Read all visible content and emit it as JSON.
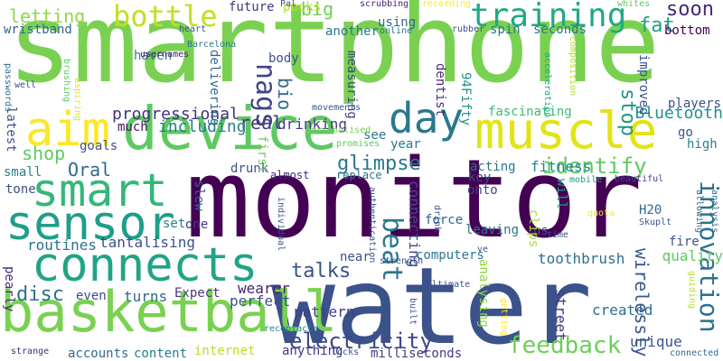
{
  "words": [
    {
      "text": "smartphone",
      "color": "#7ad151"
    },
    {
      "text": "monitor",
      "color": "#440154"
    },
    {
      "text": "water",
      "color": "#3b528b"
    },
    {
      "text": "device",
      "color": "#5ec962"
    },
    {
      "text": "basketball",
      "color": "#7ad151"
    },
    {
      "text": "muscle",
      "color": "#e2e418"
    },
    {
      "text": "connects",
      "color": "#20a486"
    },
    {
      "text": "aim",
      "color": "#fde725"
    },
    {
      "text": "sensor",
      "color": "#1f9e89"
    },
    {
      "text": "smart",
      "color": "#35b779"
    },
    {
      "text": "day",
      "color": "#2a788e"
    },
    {
      "text": "training",
      "color": "#22a884"
    },
    {
      "text": "bottle",
      "color": "#c2df23"
    },
    {
      "text": "nags",
      "color": "#414487"
    },
    {
      "text": "beat",
      "color": "#2a788e"
    },
    {
      "text": "feedback",
      "color": "#6ece58"
    },
    {
      "text": "innovation",
      "color": "#2c728e"
    },
    {
      "text": "electricity",
      "color": "#3e4989"
    },
    {
      "text": "identify",
      "color": "#5ec962"
    },
    {
      "text": "glimpse",
      "color": "#2a788e"
    },
    {
      "text": "soon",
      "color": "#482878"
    },
    {
      "text": "fat",
      "color": "#1fa187"
    },
    {
      "text": "stop",
      "color": "#1f968b"
    },
    {
      "text": "talks",
      "color": "#3b528b"
    },
    {
      "text": "disc",
      "color": "#2c728e"
    },
    {
      "text": "letting",
      "color": "#8fd744"
    },
    {
      "text": "real",
      "color": "#443983"
    },
    {
      "text": "shop",
      "color": "#5ec962"
    },
    {
      "text": "Oral",
      "color": "#31688e"
    },
    {
      "text": "big",
      "color": "#6ece58"
    },
    {
      "text": "bio",
      "color": "#31688e"
    },
    {
      "text": "progressional",
      "color": "#46327e"
    },
    {
      "text": "including",
      "color": "#287c8e"
    },
    {
      "text": "drinking",
      "color": "#443983"
    },
    {
      "text": "wirelessly",
      "color": "#38588c"
    },
    {
      "text": "Bluetooth",
      "color": "#21918c"
    },
    {
      "text": "connecting",
      "color": "#3f4788"
    },
    {
      "text": "fitness",
      "color": "#26828e"
    },
    {
      "text": "unique",
      "color": "#39568c"
    },
    {
      "text": "routines",
      "color": "#2d708e"
    },
    {
      "text": "tantalising",
      "color": "#3b528b"
    },
    {
      "text": "force",
      "color": "#33638d"
    },
    {
      "text": "pattern",
      "color": "#433e85"
    },
    {
      "text": "wearer",
      "color": "#482071"
    },
    {
      "text": "perfect",
      "color": "#3b528b"
    },
    {
      "text": "turns",
      "color": "#31688e"
    },
    {
      "text": "toothbrush",
      "color": "#2d708e"
    },
    {
      "text": "quality",
      "color": "#5ec962"
    },
    {
      "text": "street",
      "color": "#443a83"
    },
    {
      "text": "created",
      "color": "#2e6e8e"
    },
    {
      "text": "milliseconds",
      "color": "#424086"
    },
    {
      "text": "anything",
      "color": "#453781"
    },
    {
      "text": "accounts",
      "color": "#31688e"
    },
    {
      "text": "content",
      "color": "#287c8e"
    },
    {
      "text": "internet",
      "color": "#b5de2b"
    },
    {
      "text": "pearly",
      "color": "#472d7b"
    },
    {
      "text": "Expect",
      "color": "#453781"
    },
    {
      "text": "even",
      "color": "#3e4989"
    },
    {
      "text": "wristband",
      "color": "#31688e"
    },
    {
      "text": "haven",
      "color": "#26828e"
    },
    {
      "text": "future",
      "color": "#443983"
    },
    {
      "text": "packs",
      "color": "#b5de2b"
    },
    {
      "text": "using",
      "color": "#31688e"
    },
    {
      "text": "another",
      "color": "#2a788e"
    },
    {
      "text": "seconds",
      "color": "#2a788e"
    },
    {
      "text": "spin",
      "color": "#2a788e"
    },
    {
      "text": "bottom",
      "color": "#440154"
    },
    {
      "text": "players",
      "color": "#3b528b"
    },
    {
      "text": "improved",
      "color": "#3b528b"
    },
    {
      "text": "dentist",
      "color": "#472c7a"
    },
    {
      "text": "94Fifty",
      "color": "#21918c"
    },
    {
      "text": "fascinating",
      "color": "#3cbb75"
    },
    {
      "text": "measuring",
      "color": "#414487"
    },
    {
      "text": "delivering",
      "color": "#31688e"
    },
    {
      "text": "body",
      "color": "#3b528b"
    },
    {
      "text": "much",
      "color": "#471365"
    },
    {
      "text": "goals",
      "color": "#3b528b"
    },
    {
      "text": "latest",
      "color": "#3b528b"
    },
    {
      "text": "small",
      "color": "#26828e"
    },
    {
      "text": "tone",
      "color": "#3b528b"
    },
    {
      "text": "slew",
      "color": "#31688e"
    },
    {
      "text": "set",
      "color": "#287c8e"
    },
    {
      "text": "one",
      "color": "#443983"
    },
    {
      "text": "H20",
      "color": "#31688e"
    },
    {
      "text": "key",
      "color": "#414487"
    },
    {
      "text": "onto",
      "color": "#414487"
    },
    {
      "text": "acting",
      "color": "#2a788e"
    },
    {
      "text": "leaving",
      "color": "#2c728e"
    },
    {
      "text": "us",
      "color": "#3b528b"
    },
    {
      "text": "clips",
      "color": "#a5db36"
    },
    {
      "text": "fire",
      "color": "#3b528b"
    },
    {
      "text": "computers",
      "color": "#2a788e"
    },
    {
      "text": "analysing",
      "color": "#8fd744"
    },
    {
      "text": "near",
      "color": "#3b528b"
    },
    {
      "text": "year",
      "color": "#2a788e"
    },
    {
      "text": "see",
      "color": "#2a788e"
    },
    {
      "text": "go",
      "color": "#3b528b"
    },
    {
      "text": "high",
      "color": "#26828e"
    },
    {
      "text": "will",
      "color": "#1fa187"
    },
    {
      "text": "drunk",
      "color": "#3b528b"
    },
    {
      "text": "first",
      "color": "#6ece58"
    },
    {
      "text": "almost",
      "color": "#482878"
    },
    {
      "text": "replace",
      "color": "#2c728e"
    },
    {
      "text": "beautiful",
      "color": "#404688"
    },
    {
      "text": "movements",
      "color": "#38588c"
    },
    {
      "text": "promises",
      "color": "#5ec962"
    },
    {
      "text": "personalised",
      "color": "#73d056"
    },
    {
      "text": "usernames",
      "color": "#481b6d"
    },
    {
      "text": "heart",
      "color": "#3b528b"
    },
    {
      "text": "Barcelona",
      "color": "#2a788e"
    },
    {
      "text": "Pal",
      "color": "#3b528b"
    },
    {
      "text": "scrubbing",
      "color": "#481f70"
    },
    {
      "text": "recording",
      "color": "#fde725"
    },
    {
      "text": "whites",
      "color": "#5ec962"
    },
    {
      "text": "online",
      "color": "#2a788e"
    },
    {
      "text": "rubber",
      "color": "#3b528b"
    },
    {
      "text": "acceleration",
      "color": "#20a486"
    },
    {
      "text": "composition",
      "color": "#b5de2b"
    },
    {
      "text": "passwords",
      "color": "#2c728e"
    },
    {
      "text": "well",
      "color": "#3b528b"
    },
    {
      "text": "brushing",
      "color": "#5ec962"
    },
    {
      "text": "aspiring",
      "color": "#e2e418"
    },
    {
      "text": "individual",
      "color": "#3b528b"
    },
    {
      "text": "receptacle",
      "color": "#26828e"
    },
    {
      "text": "authentication",
      "color": "#3b528b"
    },
    {
      "text": "drink",
      "color": "#3b528b"
    },
    {
      "text": "strength",
      "color": "#3b528b"
    },
    {
      "text": "mobile",
      "color": "#1fa187"
    },
    {
      "text": "allowing",
      "color": "#31688e"
    },
    {
      "text": "analysis",
      "color": "#31688e"
    },
    {
      "text": "Skuplt",
      "color": "#3b528b"
    },
    {
      "text": "quota",
      "color": "#fde725"
    },
    {
      "text": "time",
      "color": "#3b528b"
    },
    {
      "text": "guiding",
      "color": "#b5de2b"
    },
    {
      "text": "connected",
      "color": "#31688e"
    },
    {
      "text": "getting",
      "color": "#fde725"
    },
    {
      "text": "ultimate",
      "color": "#3b528b"
    },
    {
      "text": "built",
      "color": "#3b528b"
    },
    {
      "text": "locks",
      "color": "#3b528b"
    },
    {
      "text": "strange",
      "color": "#482878"
    },
    {
      "text": "ve",
      "color": "#3b528b"
    }
  ]
}
